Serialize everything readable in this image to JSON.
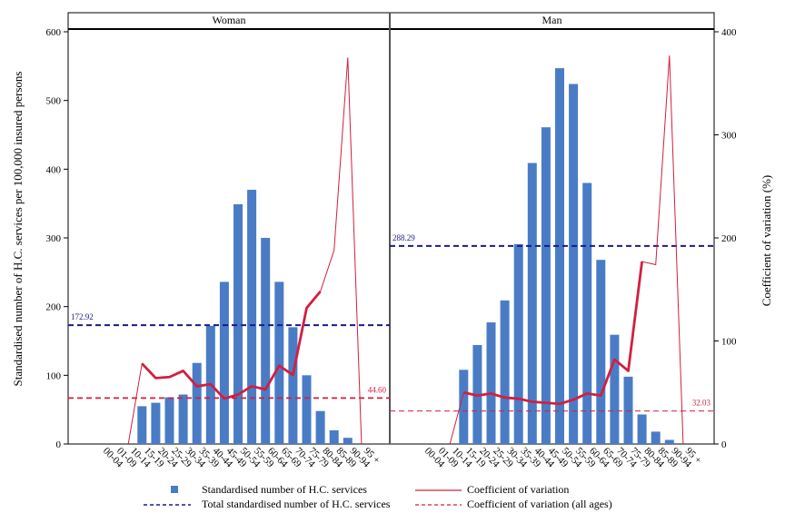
{
  "chart_data": {
    "type": "bar",
    "categories": [
      "00-04",
      "01-09",
      "10-14",
      "15-19",
      "20-24",
      "25-29",
      "30-34",
      "35-39",
      "40-44",
      "45-49",
      "50-54",
      "55-59",
      "60-64",
      "65-69",
      "70-74",
      "75-79",
      "80-84",
      "85-89",
      "90-94",
      "95 +"
    ],
    "panels": [
      {
        "title": "Woman",
        "bars": [
          0,
          0,
          0,
          55,
          60,
          68,
          72,
          118,
          172,
          236,
          349,
          370,
          300,
          236,
          170,
          100,
          48,
          20,
          9,
          0
        ],
        "cv": [
          0,
          0,
          0,
          78,
          64,
          65,
          71,
          56,
          58,
          44,
          48,
          56,
          53,
          76,
          67,
          132,
          148,
          188,
          375,
          0
        ],
        "total": 172.92,
        "total_label": "172.92",
        "cv_all": 44.6,
        "cv_all_label": "44.60"
      },
      {
        "title": "Man",
        "bars": [
          0,
          0,
          0,
          108,
          144,
          177,
          209,
          291,
          409,
          461,
          547,
          524,
          380,
          268,
          159,
          98,
          43,
          18,
          6,
          0
        ],
        "cv": [
          0,
          0,
          0,
          50,
          47,
          49,
          45,
          44,
          41,
          40,
          39,
          43,
          49,
          47,
          82,
          71,
          177,
          174,
          377,
          0
        ],
        "total": 288.29,
        "total_label": "288.29",
        "cv_all": 32.03,
        "cv_all_label": "32.03"
      }
    ],
    "y_left": {
      "label": "Standardised number of H.C. services per 100,000 insured persons",
      "ylim": [
        0,
        600
      ],
      "ticks": [
        0,
        100,
        200,
        300,
        400,
        500,
        600
      ]
    },
    "y_right": {
      "label": "Coefficient of variation (%)",
      "ylim": [
        0,
        400
      ],
      "ticks": [
        0,
        100,
        200,
        300,
        400
      ]
    },
    "legend": {
      "bars": "Standardised number of H.C. services",
      "total": "Total standardised number of H.C. services",
      "cv": "Coefficient of variation",
      "cv_all": "Coefficient of variation (all ages)"
    },
    "colors": {
      "bar": "#4a7cc6",
      "cv": "#d21f3f",
      "total": "#1a1a8c",
      "cv_all": "#d21f3f"
    }
  }
}
